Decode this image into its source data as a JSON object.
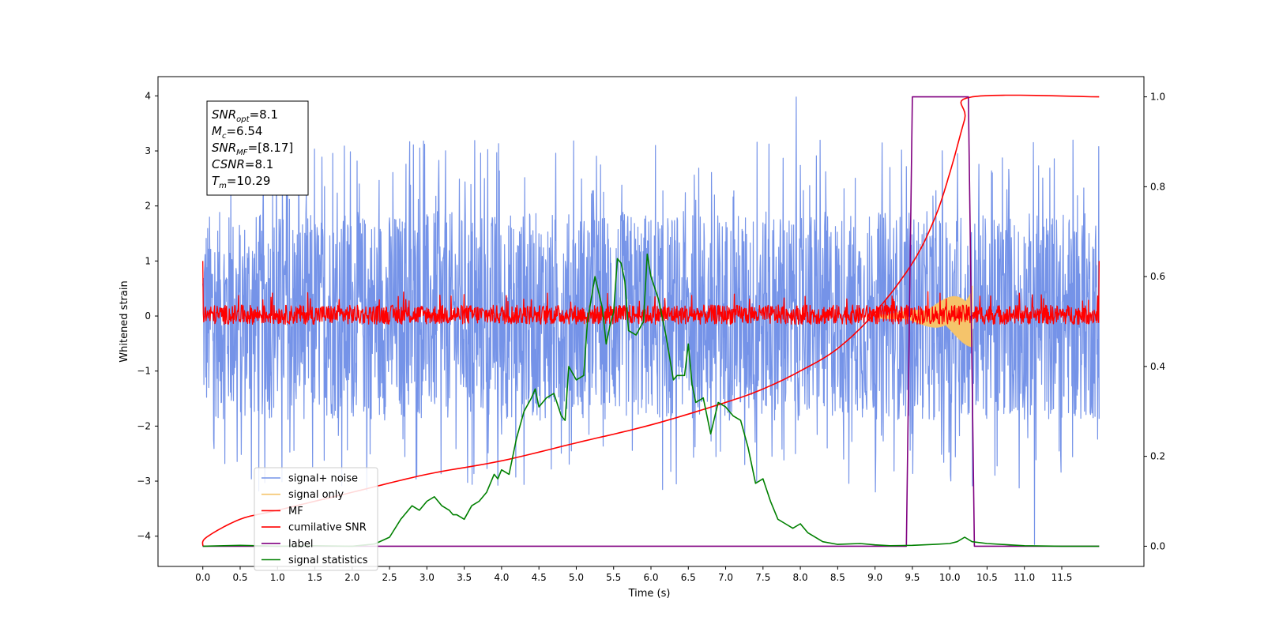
{
  "chart_data": {
    "type": "line",
    "xlabel": "Time (s)",
    "ylabel_left": "Whitened strain",
    "ylabel_right": "",
    "xlim": [
      -0.6,
      12.6
    ],
    "ylim_left": [
      -4.55,
      4.35
    ],
    "ylim_right": [
      -0.045,
      1.045
    ],
    "x_ticks": [
      "0.0",
      "0.5",
      "1.0",
      "1.5",
      "2.0",
      "2.5",
      "3.0",
      "3.5",
      "4.0",
      "4.5",
      "5.0",
      "5.5",
      "6.0",
      "6.5",
      "7.0",
      "7.5",
      "8.0",
      "8.5",
      "9.0",
      "9.5",
      "10.0",
      "10.5",
      "11.0",
      "11.5"
    ],
    "y_left_ticks": [
      "4",
      "3",
      "2",
      "1",
      "0",
      "−1",
      "−2",
      "−3",
      "−4"
    ],
    "y_right_ticks": [
      "1.0",
      "0.8",
      "0.6",
      "0.4",
      "0.2",
      "0.0"
    ],
    "annotation": [
      {
        "name": "SNR",
        "sub": "opt",
        "value": "=8.1"
      },
      {
        "name": "M",
        "sub": "c",
        "value": "=6.54"
      },
      {
        "name": "SNR",
        "sub": "MF",
        "value": "=[8.17]"
      },
      {
        "name": "CSNR",
        "sub": "",
        "value": "=8.1"
      },
      {
        "name": "T",
        "sub": "m",
        "value": "=10.29"
      }
    ],
    "legend": [
      {
        "label": "signal+ noise",
        "color": "#7593e8"
      },
      {
        "label": "signal only",
        "color": "#f5c46b"
      },
      {
        "label": "MF",
        "color": "#ff0000"
      },
      {
        "label": "cumilative SNR",
        "color": "#ff0000"
      },
      {
        "label": "label",
        "color": "#800080"
      },
      {
        "label": "signal statistics",
        "color": "#008000"
      }
    ],
    "series": [
      {
        "name": "signal+ noise",
        "axis": "left",
        "color": "#7593e8",
        "style": "dense noise band",
        "x_range": [
          0.0,
          12.0
        ],
        "typical_range": [
          -1.9,
          1.9
        ],
        "extremes": [
          -4.15,
          3.98
        ]
      },
      {
        "name": "signal only",
        "axis": "left",
        "color": "#f5c46b",
        "style": "chirp",
        "x_range": [
          9.0,
          10.3
        ],
        "peak_amplitude": 0.55
      },
      {
        "name": "MF",
        "axis": "left",
        "color": "#ff0000",
        "style": "noise band",
        "x_range": [
          0.0,
          12.0
        ],
        "typical_range": [
          -0.15,
          0.2
        ],
        "edge_value": 1.0
      },
      {
        "name": "cumilative SNR",
        "axis": "right",
        "color": "#ff0000",
        "x": [
          0.0,
          0.05,
          0.5,
          1.0,
          2.0,
          3.0,
          4.0,
          5.0,
          6.0,
          7.0,
          7.5,
          8.0,
          8.5,
          9.0,
          9.5,
          9.8,
          10.0,
          10.2,
          10.3,
          12.0
        ],
        "values": [
          0.0,
          0.02,
          0.06,
          0.08,
          0.12,
          0.16,
          0.19,
          0.23,
          0.27,
          0.32,
          0.35,
          0.39,
          0.44,
          0.52,
          0.63,
          0.73,
          0.83,
          0.95,
          1.0,
          1.0
        ]
      },
      {
        "name": "label",
        "axis": "right",
        "color": "#800080",
        "x": [
          0.0,
          9.42,
          9.5,
          10.25,
          10.33,
          12.0
        ],
        "values": [
          0.0,
          0.0,
          1.0,
          1.0,
          0.0,
          0.0
        ]
      },
      {
        "name": "signal statistics",
        "axis": "right",
        "color": "#008000",
        "x": [
          0.0,
          0.5,
          1.0,
          1.5,
          2.0,
          2.3,
          2.5,
          2.65,
          2.8,
          2.9,
          3.0,
          3.1,
          3.2,
          3.3,
          3.35,
          3.4,
          3.5,
          3.6,
          3.7,
          3.8,
          3.9,
          3.95,
          4.0,
          4.1,
          4.15,
          4.2,
          4.3,
          4.4,
          4.45,
          4.5,
          4.6,
          4.7,
          4.8,
          4.85,
          4.9,
          5.0,
          5.1,
          5.15,
          5.25,
          5.35,
          5.4,
          5.45,
          5.5,
          5.55,
          5.6,
          5.65,
          5.7,
          5.8,
          5.9,
          5.95,
          6.0,
          6.1,
          6.2,
          6.3,
          6.35,
          6.45,
          6.5,
          6.55,
          6.6,
          6.7,
          6.8,
          6.9,
          7.0,
          7.1,
          7.2,
          7.3,
          7.4,
          7.5,
          7.6,
          7.7,
          7.8,
          7.9,
          8.0,
          8.1,
          8.3,
          8.5,
          8.8,
          9.0,
          9.2,
          9.5,
          9.8,
          10.0,
          10.1,
          10.2,
          10.3,
          10.5,
          10.8,
          11.0,
          11.5,
          12.0
        ],
        "values": [
          0.0,
          0.002,
          0.0,
          0.001,
          0.0,
          0.005,
          0.02,
          0.06,
          0.09,
          0.08,
          0.1,
          0.11,
          0.09,
          0.08,
          0.07,
          0.07,
          0.06,
          0.09,
          0.1,
          0.12,
          0.16,
          0.15,
          0.17,
          0.16,
          0.2,
          0.24,
          0.3,
          0.33,
          0.35,
          0.31,
          0.33,
          0.34,
          0.29,
          0.28,
          0.4,
          0.37,
          0.38,
          0.5,
          0.6,
          0.53,
          0.45,
          0.49,
          0.52,
          0.64,
          0.63,
          0.59,
          0.48,
          0.47,
          0.5,
          0.65,
          0.6,
          0.55,
          0.47,
          0.37,
          0.38,
          0.38,
          0.45,
          0.36,
          0.32,
          0.33,
          0.25,
          0.32,
          0.31,
          0.29,
          0.28,
          0.22,
          0.14,
          0.15,
          0.1,
          0.06,
          0.05,
          0.04,
          0.05,
          0.03,
          0.01,
          0.004,
          0.006,
          0.003,
          0.001,
          0.002,
          0.004,
          0.006,
          0.01,
          0.02,
          0.01,
          0.006,
          0.003,
          0.001,
          0.0,
          0.0
        ]
      }
    ]
  }
}
